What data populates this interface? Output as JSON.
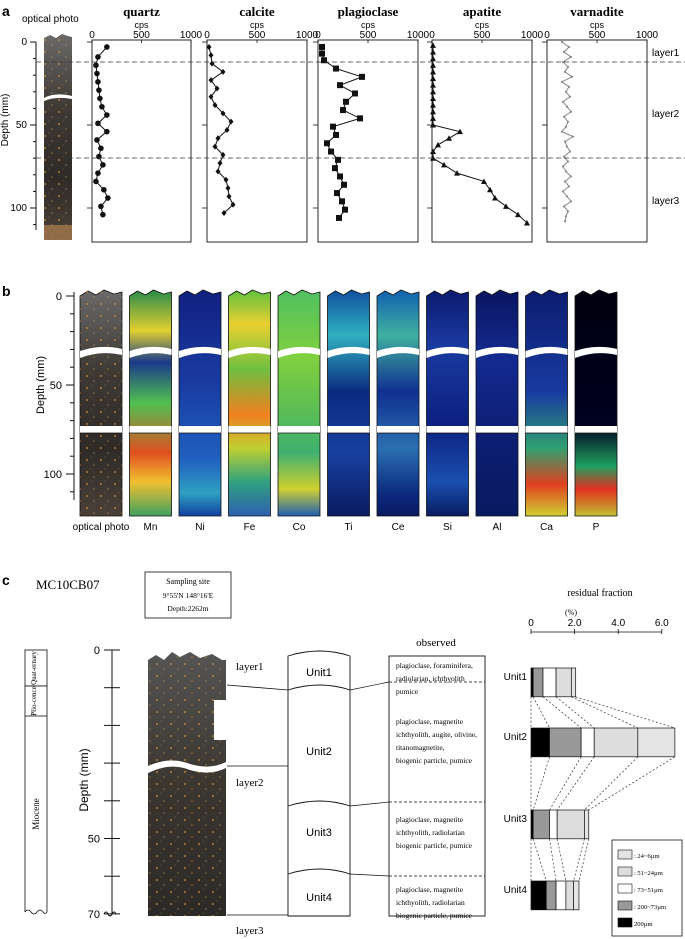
{
  "figure": {
    "panel_a": {
      "letter": "a",
      "optical_label": "optical photo",
      "depth_axis_label": "Depth (mm)",
      "depth_ticks": [
        "0",
        "50",
        "100"
      ],
      "unit": "cps",
      "x_ticks": [
        "0",
        "500",
        "1000"
      ],
      "layers": [
        "layer1",
        "layer2",
        "layer3"
      ]
    },
    "panel_b": {
      "letter": "b",
      "depth_axis_label": "Depth (mm)",
      "depth_ticks": [
        "0",
        "50",
        "100"
      ],
      "columns": [
        "optical photo",
        "Mn",
        "Ni",
        "Fe",
        "Co",
        "Ti",
        "Ce",
        "Si",
        "Al",
        "Ca",
        "P"
      ]
    },
    "panel_c": {
      "letter": "c",
      "sample_id": "MC10CB07",
      "sampling_site": {
        "title": "Sampling site",
        "coords": "9°55'N    148°16'E",
        "depth": "Depth:2262m"
      },
      "epochs": [
        "Quat-ernary",
        "Plio-cence",
        "Miocene"
      ],
      "depth_axis_label": "Depth (mm)",
      "depth_ticks": [
        "0",
        "10",
        "20",
        "30",
        "40",
        "50",
        "60",
        "70"
      ],
      "layers": [
        "layer1",
        "layer2",
        "layer3"
      ],
      "units": [
        "Unit1",
        "Unit2",
        "Unit3",
        "Unit4"
      ],
      "observed_title": "observed",
      "observed": [
        [
          "plagioclase, foraminifera,",
          "radiolarian, ichthyolith",
          "pumice"
        ],
        [
          "plagioclase, magnetite",
          "ichthyolith, augite, olivine,",
          "titanomagnetite,",
          "biogenic particle, pumice"
        ],
        [
          "plagioclase, magnetite",
          "ichthyolith, radiolarian",
          "biogenic particle, pumice"
        ],
        [
          "plagioclase, magnetite",
          "ichthyolith, radiolarian",
          "biogenic particle, pumice"
        ]
      ],
      "residual_title": "residual fraction",
      "residual_unit": "(%)"
    }
  },
  "chart_data": [
    {
      "type": "line",
      "title": "quartz",
      "xlabel": "cps",
      "ylabel": "Depth (mm)",
      "xlim": [
        0,
        1000
      ],
      "ylim": [
        0,
        110
      ],
      "series": [
        {
          "depth": [
            3,
            9,
            14,
            19,
            24,
            29,
            34,
            39,
            44,
            49,
            54,
            59,
            64,
            69,
            74,
            79,
            84,
            89,
            94,
            99,
            104
          ],
          "cps": [
            150,
            60,
            40,
            50,
            60,
            70,
            80,
            100,
            150,
            60,
            150,
            50,
            90,
            70,
            110,
            60,
            40,
            120,
            160,
            90,
            110
          ]
        }
      ]
    },
    {
      "type": "line",
      "title": "calcite",
      "xlabel": "cps",
      "ylabel": "Depth (mm)",
      "xlim": [
        0,
        1000
      ],
      "ylim": [
        0,
        110
      ],
      "series": [
        {
          "depth": [
            3,
            8,
            13,
            18,
            23,
            28,
            33,
            38,
            43,
            48,
            53,
            58,
            63,
            68,
            73,
            78,
            83,
            88,
            93,
            98,
            103
          ],
          "cps": [
            20,
            40,
            50,
            160,
            40,
            100,
            40,
            80,
            160,
            240,
            200,
            110,
            80,
            160,
            130,
            110,
            190,
            210,
            220,
            260,
            170
          ]
        }
      ]
    },
    {
      "type": "line",
      "title": "plagioclase",
      "xlabel": "cps",
      "ylabel": "Depth (mm)",
      "xlim": [
        0,
        1000
      ],
      "ylim": [
        0,
        110
      ],
      "series": [
        {
          "depth": [
            3,
            7,
            11,
            16,
            21,
            26,
            31,
            36,
            41,
            46,
            51,
            56,
            61,
            66,
            71,
            76,
            81,
            86,
            91,
            96,
            101,
            106
          ],
          "cps": [
            40,
            40,
            60,
            180,
            440,
            220,
            370,
            280,
            250,
            420,
            150,
            180,
            90,
            130,
            200,
            170,
            220,
            260,
            190,
            240,
            270,
            210
          ]
        }
      ]
    },
    {
      "type": "line",
      "title": "apatite",
      "xlabel": "cps",
      "ylabel": "Depth (mm)",
      "xlim": [
        0,
        1000
      ],
      "ylim": [
        0,
        110
      ],
      "series": [
        {
          "depth": [
            2,
            6,
            10,
            14,
            18,
            22,
            26,
            30,
            34,
            38,
            42,
            46,
            50,
            54,
            58,
            62,
            66,
            70,
            74,
            79,
            84,
            89,
            94,
            99,
            104,
            109
          ],
          "cps": [
            10,
            10,
            10,
            10,
            10,
            10,
            10,
            10,
            10,
            10,
            10,
            10,
            10,
            280,
            170,
            60,
            10,
            10,
            120,
            250,
            520,
            580,
            630,
            740,
            860,
            950
          ]
        }
      ]
    },
    {
      "type": "line",
      "title": "varnadite",
      "xlabel": "cps",
      "ylabel": "Depth (mm)",
      "xlim": [
        0,
        1000
      ],
      "ylim": [
        0,
        110
      ],
      "series": [
        {
          "depth": [
            0,
            3,
            6,
            9,
            12,
            15,
            18,
            21,
            24,
            27,
            30,
            33,
            36,
            39,
            42,
            45,
            48,
            51,
            54,
            57,
            60,
            63,
            66,
            69,
            72,
            75,
            78,
            81,
            84,
            87,
            90,
            93,
            96,
            99,
            102,
            105,
            108
          ],
          "cps": [
            150,
            220,
            170,
            240,
            160,
            210,
            180,
            250,
            150,
            220,
            190,
            230,
            160,
            200,
            240,
            170,
            210,
            190,
            150,
            260,
            180,
            200,
            230,
            170,
            210,
            160,
            190,
            240,
            180,
            220,
            160,
            200,
            240,
            170,
            210,
            190,
            180
          ]
        }
      ]
    },
    {
      "type": "bar",
      "title": "residual fraction",
      "xlabel": "(%)",
      "xlim": [
        0,
        6.0
      ],
      "x_ticks": [
        0,
        2.0,
        4.0,
        6.0
      ],
      "categories": [
        "Unit1",
        "Unit2",
        "Unit3",
        "Unit4"
      ],
      "stacked": true,
      "legend_position": "bottom-right",
      "series": [
        {
          "name": "200µm",
          "color": "#000000",
          "values": [
            0.1,
            0.85,
            0.1,
            0.7
          ]
        },
        {
          "name": ": 200~73µm",
          "color": "#999999",
          "values": [
            0.45,
            1.45,
            0.75,
            0.45
          ]
        },
        {
          "name": ": 73~51µm",
          "color": "#ffffff",
          "values": [
            0.6,
            0.6,
            0.35,
            0.45
          ]
        },
        {
          "name": ": 51~24µm",
          "color": "#dddddd",
          "values": [
            0.7,
            2.0,
            1.25,
            0.35
          ]
        },
        {
          "name": ": 24~6µm",
          "color": "#e4e4e4",
          "values": [
            0.2,
            1.7,
            0.2,
            0.25
          ]
        }
      ]
    }
  ]
}
